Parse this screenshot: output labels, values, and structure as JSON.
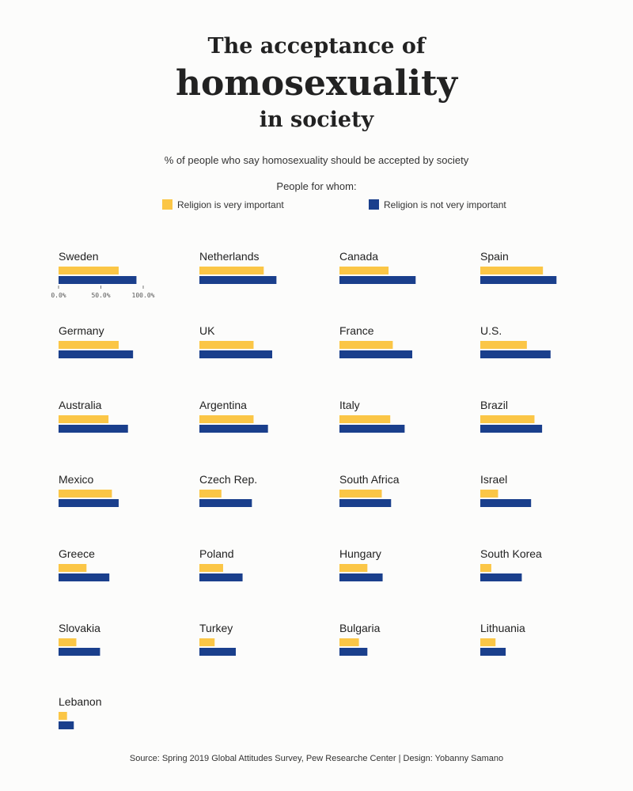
{
  "title": {
    "line1": "The acceptance of",
    "line2": "homosexuality",
    "line3": "in society"
  },
  "subtitle": "% of people who say homosexuality should be accepted by society",
  "legend": {
    "title": "People for whom:",
    "items": [
      {
        "label": "Religion is very important",
        "color": "#FBC646"
      },
      {
        "label": "Religion is not very important",
        "color": "#1A3F8C"
      }
    ]
  },
  "source": "Source: Spring 2019 Global Attitudes Survey, Pew Researche Center | Design: Yobanny Samano",
  "chart_data": {
    "type": "bar",
    "orientation": "horizontal",
    "layout": "small-multiples",
    "xlim": [
      0,
      100
    ],
    "x_ticks": [
      "0.0%",
      "50.0%",
      "100.0%"
    ],
    "series_names": [
      "Religion is very important",
      "Religion is not very important"
    ],
    "colors": [
      "#FBC646",
      "#1A3F8C"
    ],
    "panels": [
      {
        "country": "Sweden",
        "values": [
          71,
          92
        ]
      },
      {
        "country": "Netherlands",
        "values": [
          76,
          91
        ]
      },
      {
        "country": "Canada",
        "values": [
          58,
          90
        ]
      },
      {
        "country": "Spain",
        "values": [
          74,
          90
        ]
      },
      {
        "country": "Germany",
        "values": [
          71,
          88
        ]
      },
      {
        "country": "UK",
        "values": [
          64,
          86
        ]
      },
      {
        "country": "France",
        "values": [
          63,
          86
        ]
      },
      {
        "country": "U.S.",
        "values": [
          55,
          83
        ]
      },
      {
        "country": "Australia",
        "values": [
          59,
          82
        ]
      },
      {
        "country": "Argentina",
        "values": [
          64,
          81
        ]
      },
      {
        "country": "Italy",
        "values": [
          60,
          77
        ]
      },
      {
        "country": "Brazil",
        "values": [
          64,
          73
        ]
      },
      {
        "country": "Mexico",
        "values": [
          63,
          71
        ]
      },
      {
        "country": "Czech Rep.",
        "values": [
          26,
          62
        ]
      },
      {
        "country": "South Africa",
        "values": [
          50,
          61
        ]
      },
      {
        "country": "Israel",
        "values": [
          21,
          60
        ]
      },
      {
        "country": "Greece",
        "values": [
          33,
          60
        ]
      },
      {
        "country": "Poland",
        "values": [
          28,
          51
        ]
      },
      {
        "country": "Hungary",
        "values": [
          33,
          51
        ]
      },
      {
        "country": "South Korea",
        "values": [
          13,
          49
        ]
      },
      {
        "country": "Slovakia",
        "values": [
          21,
          49
        ]
      },
      {
        "country": "Turkey",
        "values": [
          18,
          43
        ]
      },
      {
        "country": "Bulgaria",
        "values": [
          23,
          33
        ]
      },
      {
        "country": "Lithuania",
        "values": [
          18,
          30
        ]
      },
      {
        "country": "Lebanon",
        "values": [
          10,
          18
        ]
      }
    ]
  }
}
